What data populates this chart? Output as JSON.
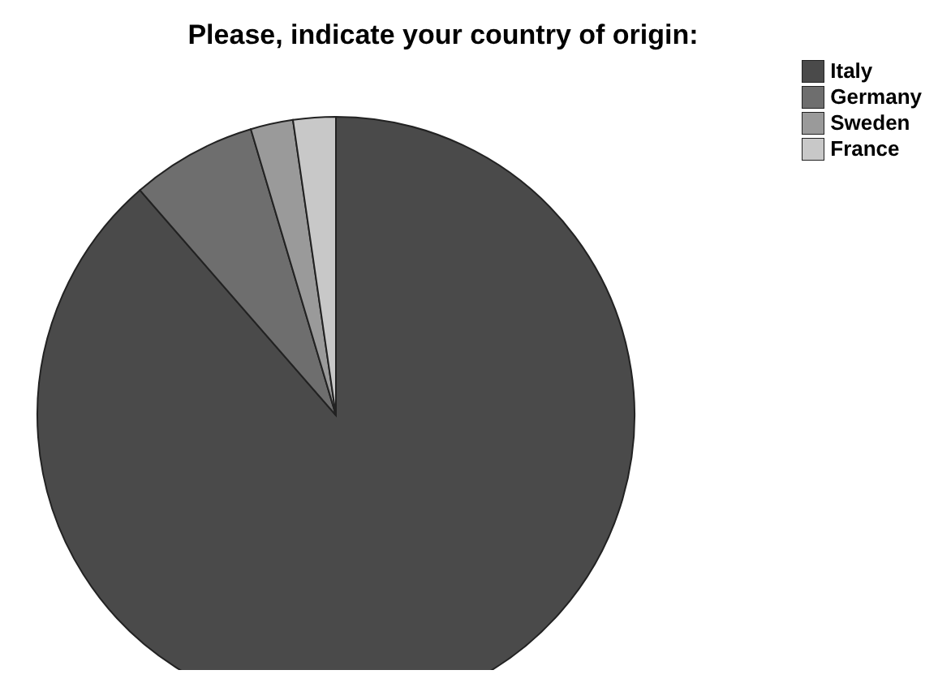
{
  "chart_data": {
    "type": "pie",
    "title": "Please, indicate your country of origin:",
    "categories": [
      "Italy",
      "Germany",
      "Sweden",
      "France"
    ],
    "values": [
      88.6,
      6.8,
      2.3,
      2.3
    ],
    "colors": [
      "#4a4a4a",
      "#6e6e6e",
      "#9a9a9a",
      "#c8c8c8"
    ],
    "legend": "top right"
  }
}
